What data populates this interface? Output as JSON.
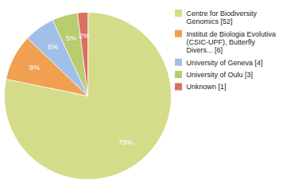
{
  "chart_data": {
    "type": "pie",
    "categories": [
      "Centre for Biodiversity\nGenomics [52]",
      "Institut de Biologia Evolutiva\n(CSIC-UPF), Butterfly\nDivers... [6]",
      "University of Geneva [4]",
      "University of Oulu [3]",
      "Unknown [1]"
    ],
    "values": [
      79,
      9,
      6,
      5,
      2
    ],
    "value_labels": [
      "79%",
      "9%",
      "6%",
      "5%",
      "2%"
    ],
    "colors": [
      "#d4dc8a",
      "#f0a050",
      "#a0c0e8",
      "#b8cc70",
      "#d97060"
    ],
    "data_labels": true,
    "legend": "right"
  }
}
